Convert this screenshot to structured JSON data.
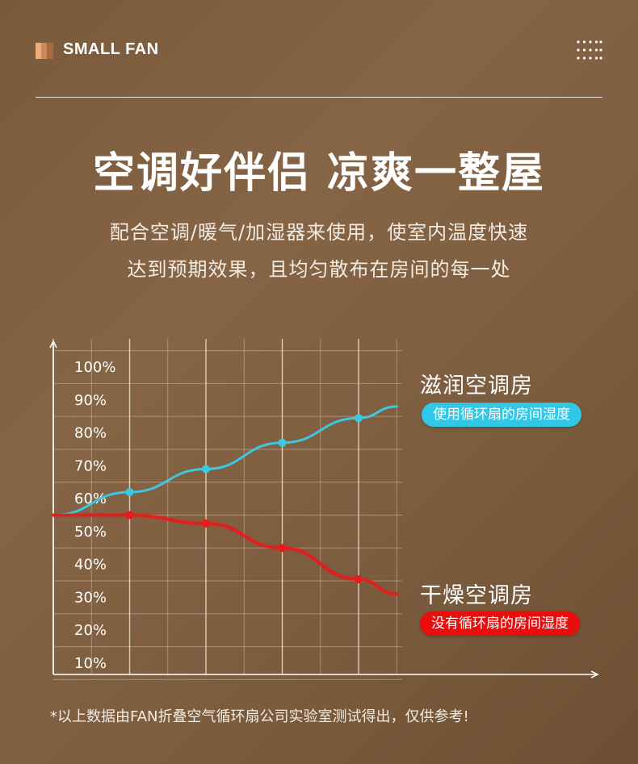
{
  "header": {
    "logo_text": "SMALL FAN",
    "menu_icon": "grid-dots-icon"
  },
  "title": "空调好伴侣 凉爽一整屋",
  "subtitle_lines": [
    "配合空调/暖气/加湿器来使用，使室内温度快速",
    "达到预期效果，且均匀散布在房间的每一处"
  ],
  "chart_data": {
    "type": "line",
    "y_ticks": [
      "100%",
      "90%",
      "80%",
      "70%",
      "60%",
      "50%",
      "40%",
      "30%",
      "20%",
      "10%"
    ],
    "ylim": [
      5,
      105
    ],
    "x": [
      0,
      1,
      2,
      3,
      4,
      4.5
    ],
    "series": [
      {
        "name": "滋润空调房",
        "tag": "使用循环扇的房间湿度",
        "color": "#3cc8e0",
        "values": [
          55,
          62,
          69,
          77,
          84.5,
          88
        ],
        "marker_indices": [
          1,
          2,
          3,
          4
        ]
      },
      {
        "name": "干燥空调房",
        "tag": "没有循环扇的房间湿度",
        "color": "#e81a1a",
        "values": [
          55,
          55,
          52.5,
          45,
          35.5,
          31
        ],
        "marker_indices": [
          1,
          2,
          3,
          4
        ]
      }
    ],
    "grid": true,
    "legend": "right"
  },
  "footnote": "*以上数据由FAN折叠空气循环扇公司实验室测试得出，仅供参考!"
}
